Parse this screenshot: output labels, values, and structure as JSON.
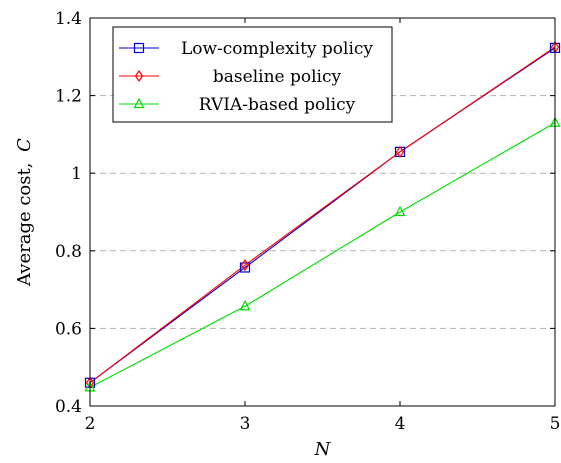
{
  "chart_data": {
    "type": "line",
    "title": "",
    "xlabel": "N",
    "ylabel": "Average cost, C̄",
    "ylabel_prefix": "Average cost,",
    "ylabel_symbol": "C",
    "ylabel_bar": "̄",
    "x": [
      2,
      3,
      4,
      5
    ],
    "xlim": [
      2,
      5
    ],
    "ylim": [
      0.4,
      1.4
    ],
    "xticks": [
      "2",
      "3",
      "4",
      "5"
    ],
    "yticks": [
      "0.4",
      "0.6",
      "0.8",
      "1",
      "1.2",
      "1.4"
    ],
    "ytick_values": [
      0.4,
      0.6,
      0.8,
      1.0,
      1.2,
      1.4
    ],
    "grid": "horizontal dashed",
    "legend_position": "top-left",
    "series": [
      {
        "name": "Low-complexity policy",
        "color": "#0000cc",
        "marker": "square",
        "values": [
          0.46,
          0.757,
          1.055,
          1.323
        ]
      },
      {
        "name": "baseline policy",
        "color": "#ff0000",
        "marker": "diamond",
        "values": [
          0.46,
          0.763,
          1.055,
          1.325
        ]
      },
      {
        "name": "RVIA-based policy",
        "color": "#00dd00",
        "marker": "triangle",
        "values": [
          0.448,
          0.657,
          0.9,
          1.13
        ]
      }
    ]
  }
}
